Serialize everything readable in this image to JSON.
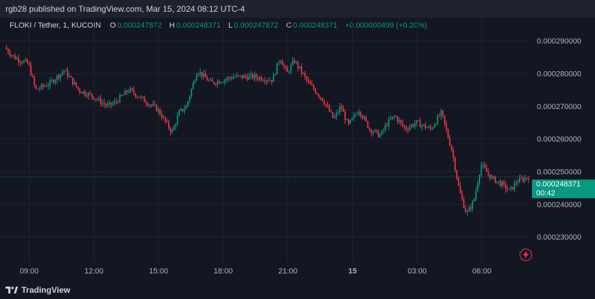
{
  "publisher_line": "rgb28 published on TradingView.com, Mar 15, 2024 08:12 UTC-4",
  "legend": {
    "symbol": "FLOKI / Tether, 1, KUCOIN",
    "open_label": "O",
    "open": "0.000247872",
    "high_label": "H",
    "high": "0.000248371",
    "low_label": "L",
    "low": "0.000247872",
    "close_label": "C",
    "close": "0.000248371",
    "change": "+0.000000499 (+0.20%)"
  },
  "price_tag": {
    "price": "0.000248371",
    "countdown": "00:42"
  },
  "brand": "TradingView",
  "colors": {
    "up": "#089981",
    "down": "#f23645",
    "background": "#131722",
    "grid": "#1f2430",
    "text": "#b2b5be"
  },
  "icons": {
    "brand": "tradingview-logo-icon",
    "alert": "lightning-bolt-icon"
  },
  "chart_data": {
    "type": "candlestick",
    "y_axis_position": "right",
    "ylim": [
      0.000222,
      0.000297
    ],
    "y_ticks": [
      "0.000230000",
      "0.000240000",
      "0.000250000",
      "0.000260000",
      "0.000270000",
      "0.000280000",
      "0.000290000"
    ],
    "x_ticks": [
      "09:00",
      "12:00",
      "15:00",
      "18:00",
      "21:00",
      "15",
      "03:00",
      "06:00"
    ],
    "grid": true,
    "last_price": 0.000248371,
    "series_close_trace": [
      [
        "07:54",
        0.000288
      ],
      [
        "08:20",
        0.000285
      ],
      [
        "09:00",
        0.000283
      ],
      [
        "09:20",
        0.000275
      ],
      [
        "10:00",
        0.000277
      ],
      [
        "10:40",
        0.000281
      ],
      [
        "11:20",
        0.000275
      ],
      [
        "12:00",
        0.000273
      ],
      [
        "12:40",
        0.00027
      ],
      [
        "13:00",
        0.000271
      ],
      [
        "13:40",
        0.000275
      ],
      [
        "14:20",
        0.000272
      ],
      [
        "15:00",
        0.000269
      ],
      [
        "15:40",
        0.000262
      ],
      [
        "16:00",
        0.000268
      ],
      [
        "16:20",
        0.00027
      ],
      [
        "16:50",
        0.000281
      ],
      [
        "17:30",
        0.000277
      ],
      [
        "18:30",
        0.000279
      ],
      [
        "19:30",
        0.000279
      ],
      [
        "20:20",
        0.000278
      ],
      [
        "20:40",
        0.000285
      ],
      [
        "21:00",
        0.00028
      ],
      [
        "21:20",
        0.000284
      ],
      [
        "22:00",
        0.000277
      ],
      [
        "22:40",
        0.000272
      ],
      [
        "23:10",
        0.000266
      ],
      [
        "23:30",
        0.00027
      ],
      [
        "23:50",
        0.000264
      ],
      [
        "00:20",
        0.000269
      ],
      [
        "00:50",
        0.000263
      ],
      [
        "01:20",
        0.000261
      ],
      [
        "01:40",
        0.000265
      ],
      [
        "02:00",
        0.000267
      ],
      [
        "02:30",
        0.000263
      ],
      [
        "03:00",
        0.000265
      ],
      [
        "03:40",
        0.000263
      ],
      [
        "04:10",
        0.000268
      ],
      [
        "04:40",
        0.000256
      ],
      [
        "05:00",
        0.000244
      ],
      [
        "05:20",
        0.000237
      ],
      [
        "05:40",
        0.000241
      ],
      [
        "06:00",
        0.000252
      ],
      [
        "06:30",
        0.000248
      ],
      [
        "07:00",
        0.000246
      ],
      [
        "07:20",
        0.000244
      ],
      [
        "07:40",
        0.000247
      ],
      [
        "08:12",
        0.000248371
      ]
    ]
  }
}
